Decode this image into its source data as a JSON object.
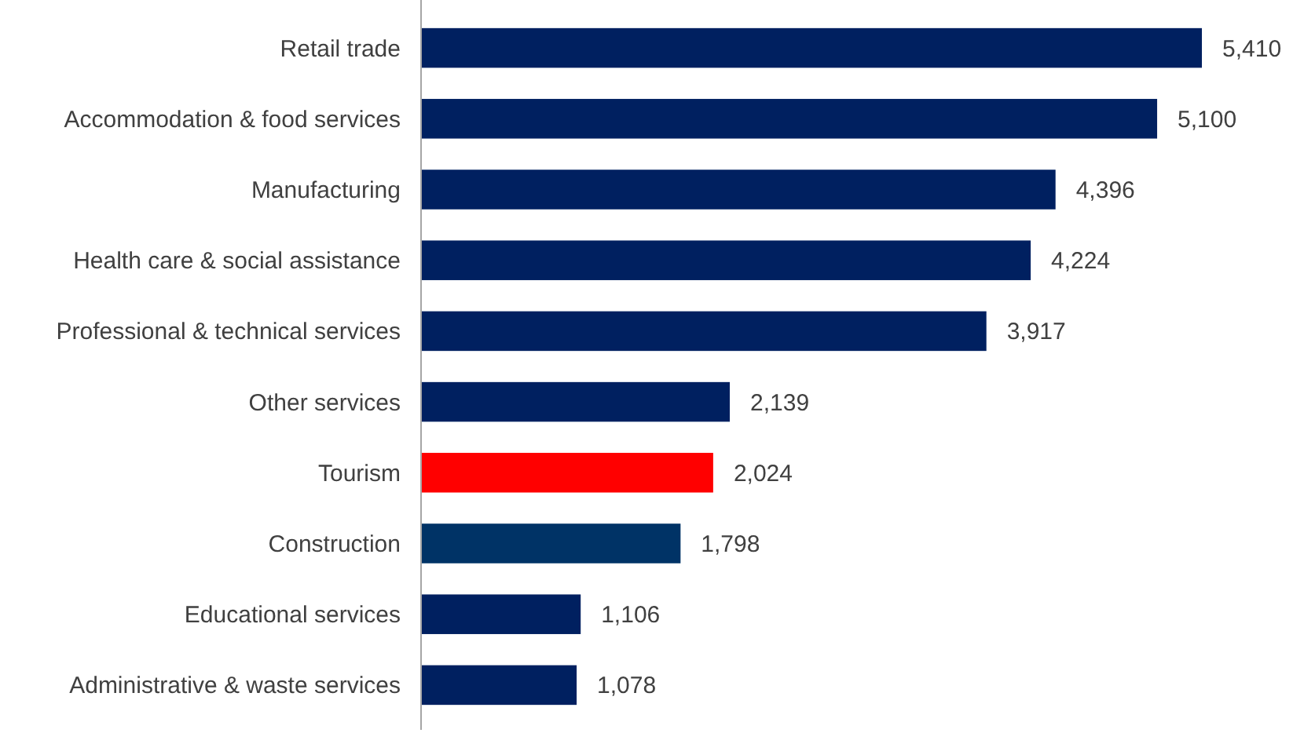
{
  "chart_data": {
    "type": "bar",
    "orientation": "horizontal",
    "categories": [
      "Retail trade",
      "Accommodation & food services",
      "Manufacturing",
      "Health care & social assistance",
      "Professional & technical services",
      "Other services",
      "Tourism",
      "Construction",
      "Educational services",
      "Administrative & waste services"
    ],
    "values": [
      5410,
      5100,
      4396,
      4224,
      3917,
      2139,
      2024,
      1798,
      1106,
      1078
    ],
    "colors": [
      "#002060",
      "#002060",
      "#002060",
      "#002060",
      "#002060",
      "#002060",
      "#ff0000",
      "#003366",
      "#002060",
      "#002060"
    ],
    "value_labels": [
      "5,410",
      "5,100",
      "4,396",
      "4,224",
      "3,917",
      "2,139",
      "2,024",
      "1,798",
      "1,106",
      "1,078"
    ]
  }
}
